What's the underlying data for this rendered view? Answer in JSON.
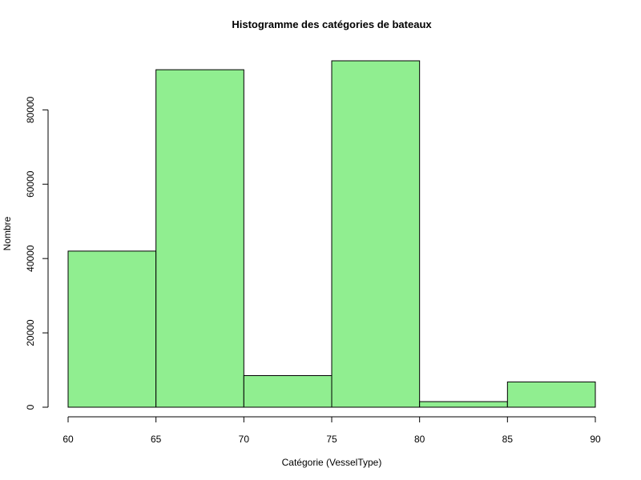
{
  "chart_data": {
    "type": "bar",
    "subtype": "histogram",
    "title": "Histogramme des catégories de bateaux",
    "xlabel": "Catégorie (VesselType)",
    "ylabel": "Nombre",
    "bins": [
      {
        "from": 60,
        "to": 65,
        "value": 42000
      },
      {
        "from": 65,
        "to": 70,
        "value": 90800
      },
      {
        "from": 70,
        "to": 75,
        "value": 8500
      },
      {
        "from": 75,
        "to": 80,
        "value": 93200
      },
      {
        "from": 80,
        "to": 85,
        "value": 1500
      },
      {
        "from": 85,
        "to": 90,
        "value": 6800
      }
    ],
    "xlim": [
      60,
      90
    ],
    "ylim": [
      0,
      93200
    ],
    "x_ticks": [
      60,
      65,
      70,
      75,
      80,
      85,
      90
    ],
    "y_ticks": [
      0,
      20000,
      40000,
      60000,
      80000
    ],
    "bar_color": "#90EE90",
    "bar_border_color": "#000000",
    "grid": false,
    "legend": "none"
  }
}
